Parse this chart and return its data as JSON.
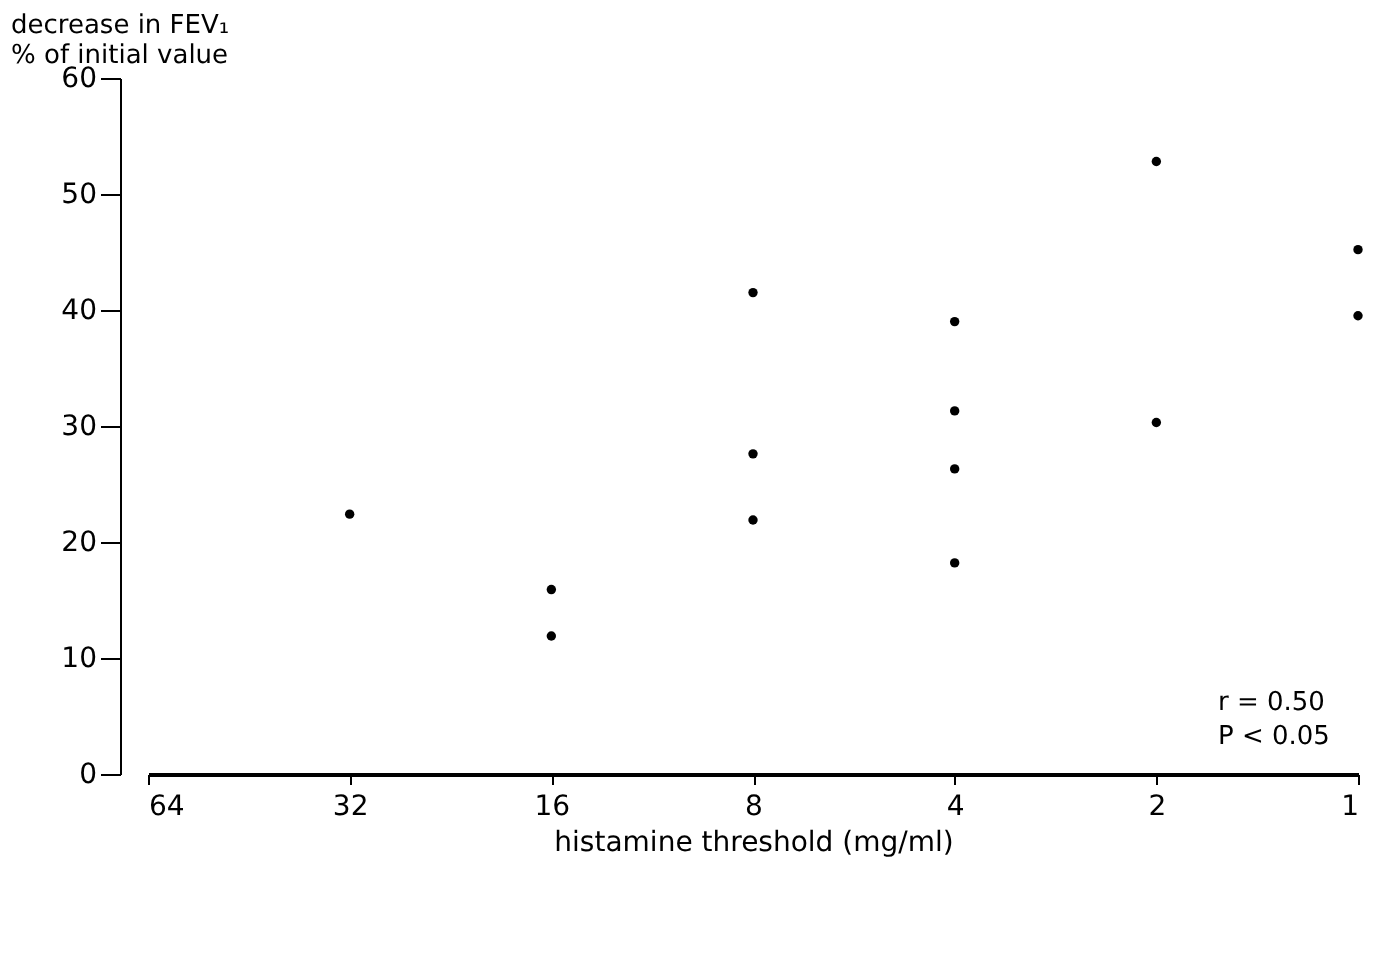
{
  "chart_data": {
    "type": "scatter",
    "xlabel": "histamine threshold (mg/ml)",
    "ylabel": "decrease in FEV₁\n% of initial value",
    "x": [
      32,
      16,
      16,
      8,
      8,
      8,
      4,
      4,
      4,
      4,
      2,
      2,
      1,
      1
    ],
    "values": [
      22.4,
      15.9,
      11.9,
      41.5,
      27.6,
      21.9,
      39.0,
      31.3,
      26.3,
      18.2,
      52.8,
      30.3,
      45.2,
      39.5
    ],
    "color": "#000000",
    "marker": "circle",
    "log": "x",
    "grid": false,
    "xlim": [
      64,
      1
    ],
    "xticks": [
      64,
      32,
      16,
      8,
      4,
      2,
      1
    ],
    "ylim": [
      0,
      60
    ],
    "yticks": [
      0,
      10,
      20,
      30,
      40,
      50,
      60
    ],
    "annotations": [
      "r = 0.50",
      "P < 0.05"
    ]
  }
}
